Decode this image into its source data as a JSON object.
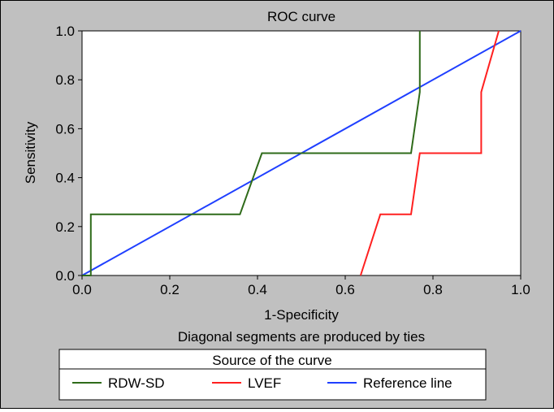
{
  "chart_data": {
    "type": "line",
    "title": "ROC curve",
    "xlabel": "1-Specificity",
    "ylabel": "Sensitivity",
    "xlim": [
      0,
      1
    ],
    "ylim": [
      0,
      1
    ],
    "x_ticks": [
      0.0,
      0.2,
      0.4,
      0.6,
      0.8,
      1.0
    ],
    "y_ticks": [
      0.0,
      0.2,
      0.4,
      0.6,
      0.8,
      1.0
    ],
    "x_tick_labels": [
      "0.0",
      "0.2",
      "0.4",
      "0.6",
      "0.8",
      "1.0"
    ],
    "y_tick_labels": [
      "0.0",
      "0.2",
      "0.4",
      "0.6",
      "0.8",
      "1.0"
    ],
    "grid": false,
    "note": "Diagonal segments are produced by ties",
    "legend_title": "Source of the curve",
    "legend_position": "bottom",
    "series": [
      {
        "name": "RDW-SD",
        "color": "#2f6b1a",
        "x": [
          0.0,
          0.02,
          0.02,
          0.36,
          0.41,
          0.75,
          0.77,
          0.77
        ],
        "y": [
          0.0,
          0.0,
          0.25,
          0.25,
          0.5,
          0.5,
          0.75,
          1.0
        ]
      },
      {
        "name": "LVEF",
        "color": "#ff2020",
        "x": [
          0.635,
          0.68,
          0.75,
          0.77,
          0.91,
          0.91,
          0.95
        ],
        "y": [
          0.0,
          0.25,
          0.25,
          0.5,
          0.5,
          0.75,
          1.0
        ]
      },
      {
        "name": "Reference line",
        "color": "#1f3fff",
        "x": [
          0.0,
          1.0
        ],
        "y": [
          0.0,
          1.0
        ]
      }
    ]
  }
}
